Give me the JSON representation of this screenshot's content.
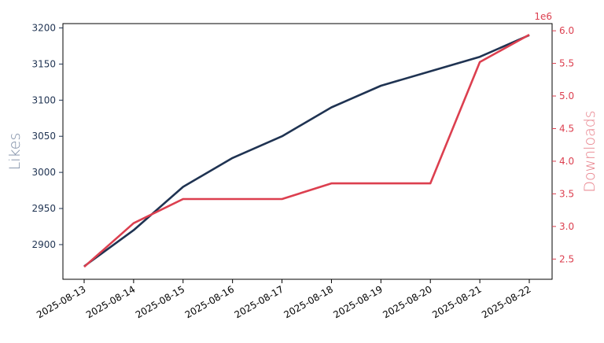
{
  "chart_data": {
    "type": "line",
    "title": "",
    "xlabel": "",
    "x": [
      "2025-08-13",
      "2025-08-14",
      "2025-08-15",
      "2025-08-16",
      "2025-08-17",
      "2025-08-18",
      "2025-08-19",
      "2025-08-20",
      "2025-08-21",
      "2025-08-22"
    ],
    "y_left": {
      "label": "Likes",
      "ticks": [
        2900,
        2950,
        3000,
        3050,
        3100,
        3150,
        3200
      ],
      "range": [
        2852,
        3206
      ],
      "color": "#1f3352",
      "label_color": "#7a8aa3"
    },
    "y_right": {
      "label": "Downloads",
      "ticks": [
        2.5,
        3.0,
        3.5,
        4.0,
        4.5,
        5.0,
        5.5,
        6.0
      ],
      "tick_labels": [
        "2.5",
        "3.0",
        "3.5",
        "4.0",
        "4.5",
        "5.0",
        "5.5",
        "6.0"
      ],
      "offset_text": "1e6",
      "range": [
        2.19,
        6.11
      ],
      "color": "#dc3f4f",
      "label_color": "#e8828c"
    },
    "series": [
      {
        "axis": "left",
        "color": "#1f3352",
        "values": [
          2870,
          2920,
          2980,
          3020,
          3050,
          3090,
          3120,
          3140,
          3160,
          3190
        ]
      },
      {
        "axis": "right",
        "color": "#dc3f4f",
        "values": [
          2.38,
          3.05,
          3.42,
          3.42,
          3.42,
          3.66,
          3.66,
          3.66,
          5.52,
          5.94
        ]
      }
    ],
    "grid": false,
    "legend": "none"
  }
}
